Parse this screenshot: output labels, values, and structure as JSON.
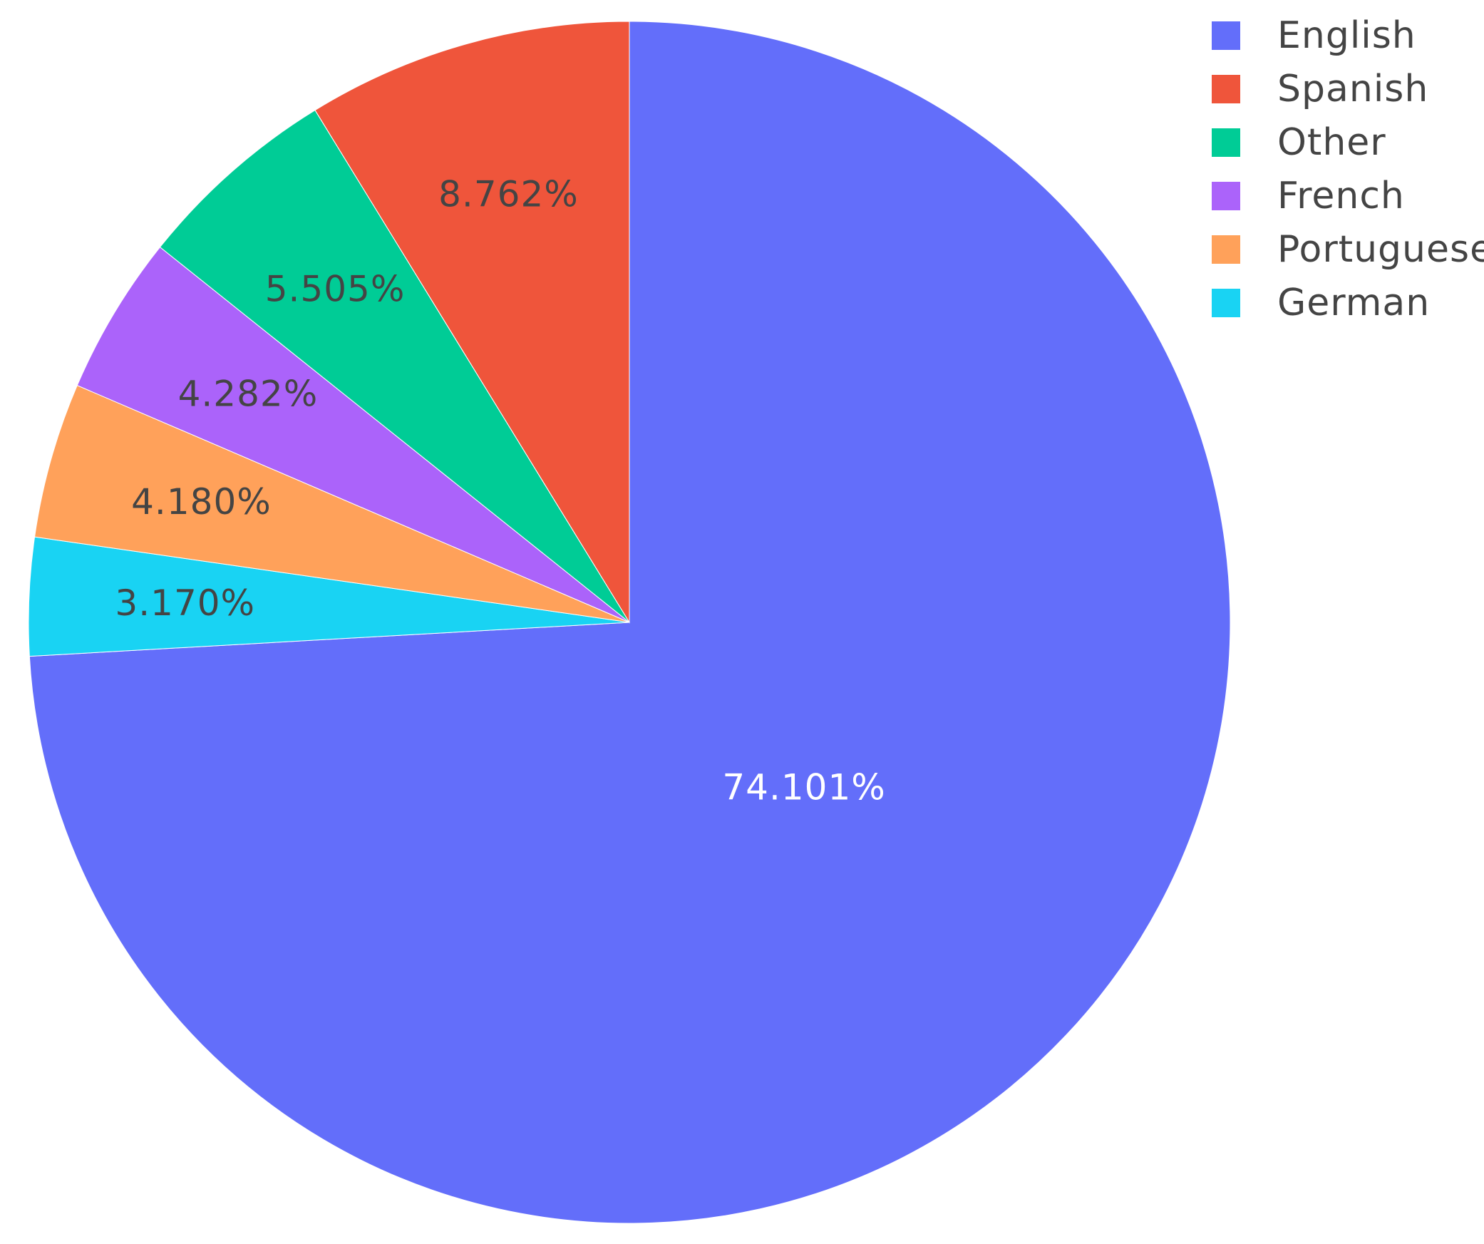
{
  "chart_data": {
    "type": "pie",
    "direction": "clockwise",
    "start": "top",
    "series": [
      {
        "name": "English",
        "value": 74.101,
        "label": "74.101%",
        "color": "#636efa",
        "label_color": "#ffffff"
      },
      {
        "name": "German",
        "value": 3.17,
        "label": "3.170%",
        "color": "#19d3f3",
        "label_color": "#444444"
      },
      {
        "name": "Portuguese",
        "value": 4.18,
        "label": "4.180%",
        "color": "#ffa15a",
        "label_color": "#444444"
      },
      {
        "name": "French",
        "value": 4.282,
        "label": "4.282%",
        "color": "#ab63fa",
        "label_color": "#444444"
      },
      {
        "name": "Other",
        "value": 5.505,
        "label": "5.505%",
        "color": "#00cc96",
        "label_color": "#444444"
      },
      {
        "name": "Spanish",
        "value": 8.762,
        "label": "8.762%",
        "color": "#ef553b",
        "label_color": "#444444"
      }
    ],
    "legend": {
      "placement": "top-right",
      "order": [
        "English",
        "Spanish",
        "Other",
        "French",
        "Portuguese",
        "German"
      ]
    }
  }
}
